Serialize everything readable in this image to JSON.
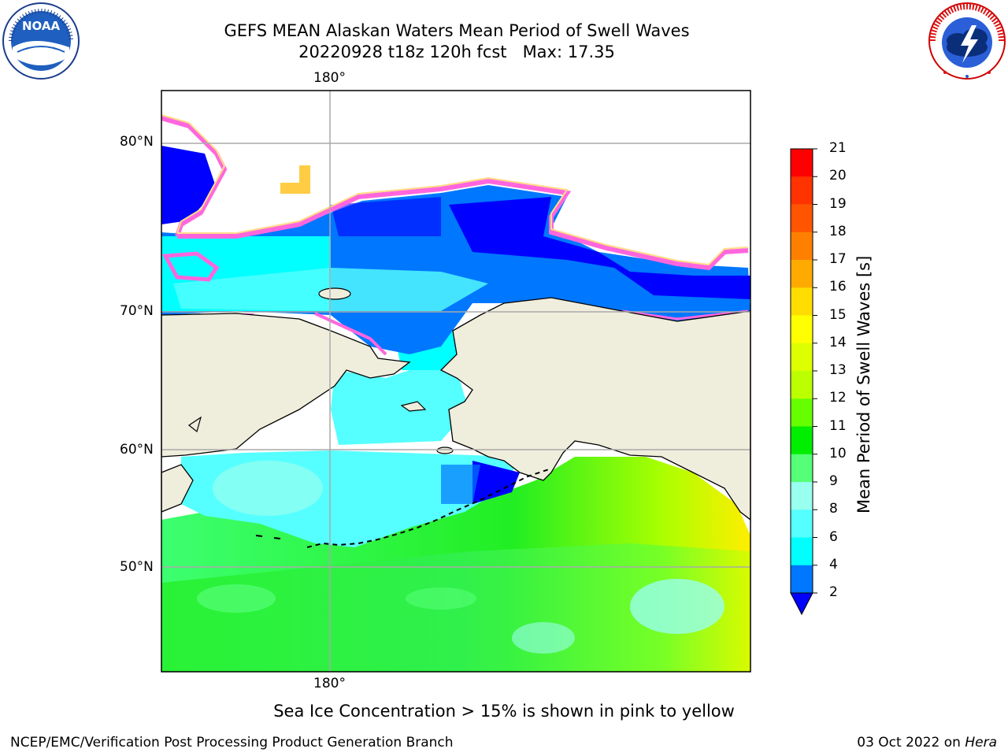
{
  "title": {
    "line1": "GEFS MEAN Alaskan Waters Mean Period of Swell Waves",
    "line2": "20220928 t18z 120h fcst   Max: 17.35"
  },
  "logos": {
    "noaa": {
      "icon": "noaa-logo",
      "text": "NOAA",
      "ring_text": "NATIONAL OCEANIC AND ATMOSPHERIC ADMINISTRATION · U.S. DEPARTMENT OF COMMERCE"
    },
    "nws": {
      "icon": "nws-logo",
      "ring_text": "NATIONAL WEATHER SERVICE"
    }
  },
  "map": {
    "lon_labels": {
      "top": "180°",
      "bottom": "180°"
    },
    "lat_labels": [
      "80°N",
      "70°N",
      "60°N",
      "50°N"
    ],
    "colors": {
      "land": "#efeddc",
      "grid": "#aaaaaa",
      "coast": "#000000"
    }
  },
  "colorbar": {
    "label": "Mean Period of Swell Waves [s]",
    "ticks": [
      "21",
      "20",
      "19",
      "18",
      "17",
      "16",
      "15",
      "14",
      "13",
      "12",
      "11",
      "10",
      "9",
      "8",
      "6",
      "4",
      "2"
    ],
    "levels": [
      {
        "level": "20-21",
        "color": "#ff0000"
      },
      {
        "level": "19-20",
        "color": "#ff3300"
      },
      {
        "level": "18-19",
        "color": "#ff5500"
      },
      {
        "level": "17-18",
        "color": "#ff8000"
      },
      {
        "level": "16-17",
        "color": "#ffaa00"
      },
      {
        "level": "15-16",
        "color": "#ffdd00"
      },
      {
        "level": "14-15",
        "color": "#ffff00"
      },
      {
        "level": "13-14",
        "color": "#ddff00"
      },
      {
        "level": "12-13",
        "color": "#bbff00"
      },
      {
        "level": "11-12",
        "color": "#66ff00"
      },
      {
        "level": "10-11",
        "color": "#00ee00"
      },
      {
        "level": "9-10",
        "color": "#55ff77"
      },
      {
        "level": "8-9",
        "color": "#99ffee"
      },
      {
        "level": "6-8",
        "color": "#55ffff"
      },
      {
        "level": "4-6",
        "color": "#00ffff"
      },
      {
        "level": "2-4",
        "color": "#0077ff"
      },
      {
        "level": "<2",
        "color": "#0000ff"
      }
    ]
  },
  "note": "Sea Ice Concentration > 15% is shown in pink to yellow",
  "footer": {
    "left": "NCEP/EMC/Verification Post Processing Product Generation Branch",
    "right_prefix": "03 Oct 2022 on ",
    "right_italic": "Hera"
  }
}
